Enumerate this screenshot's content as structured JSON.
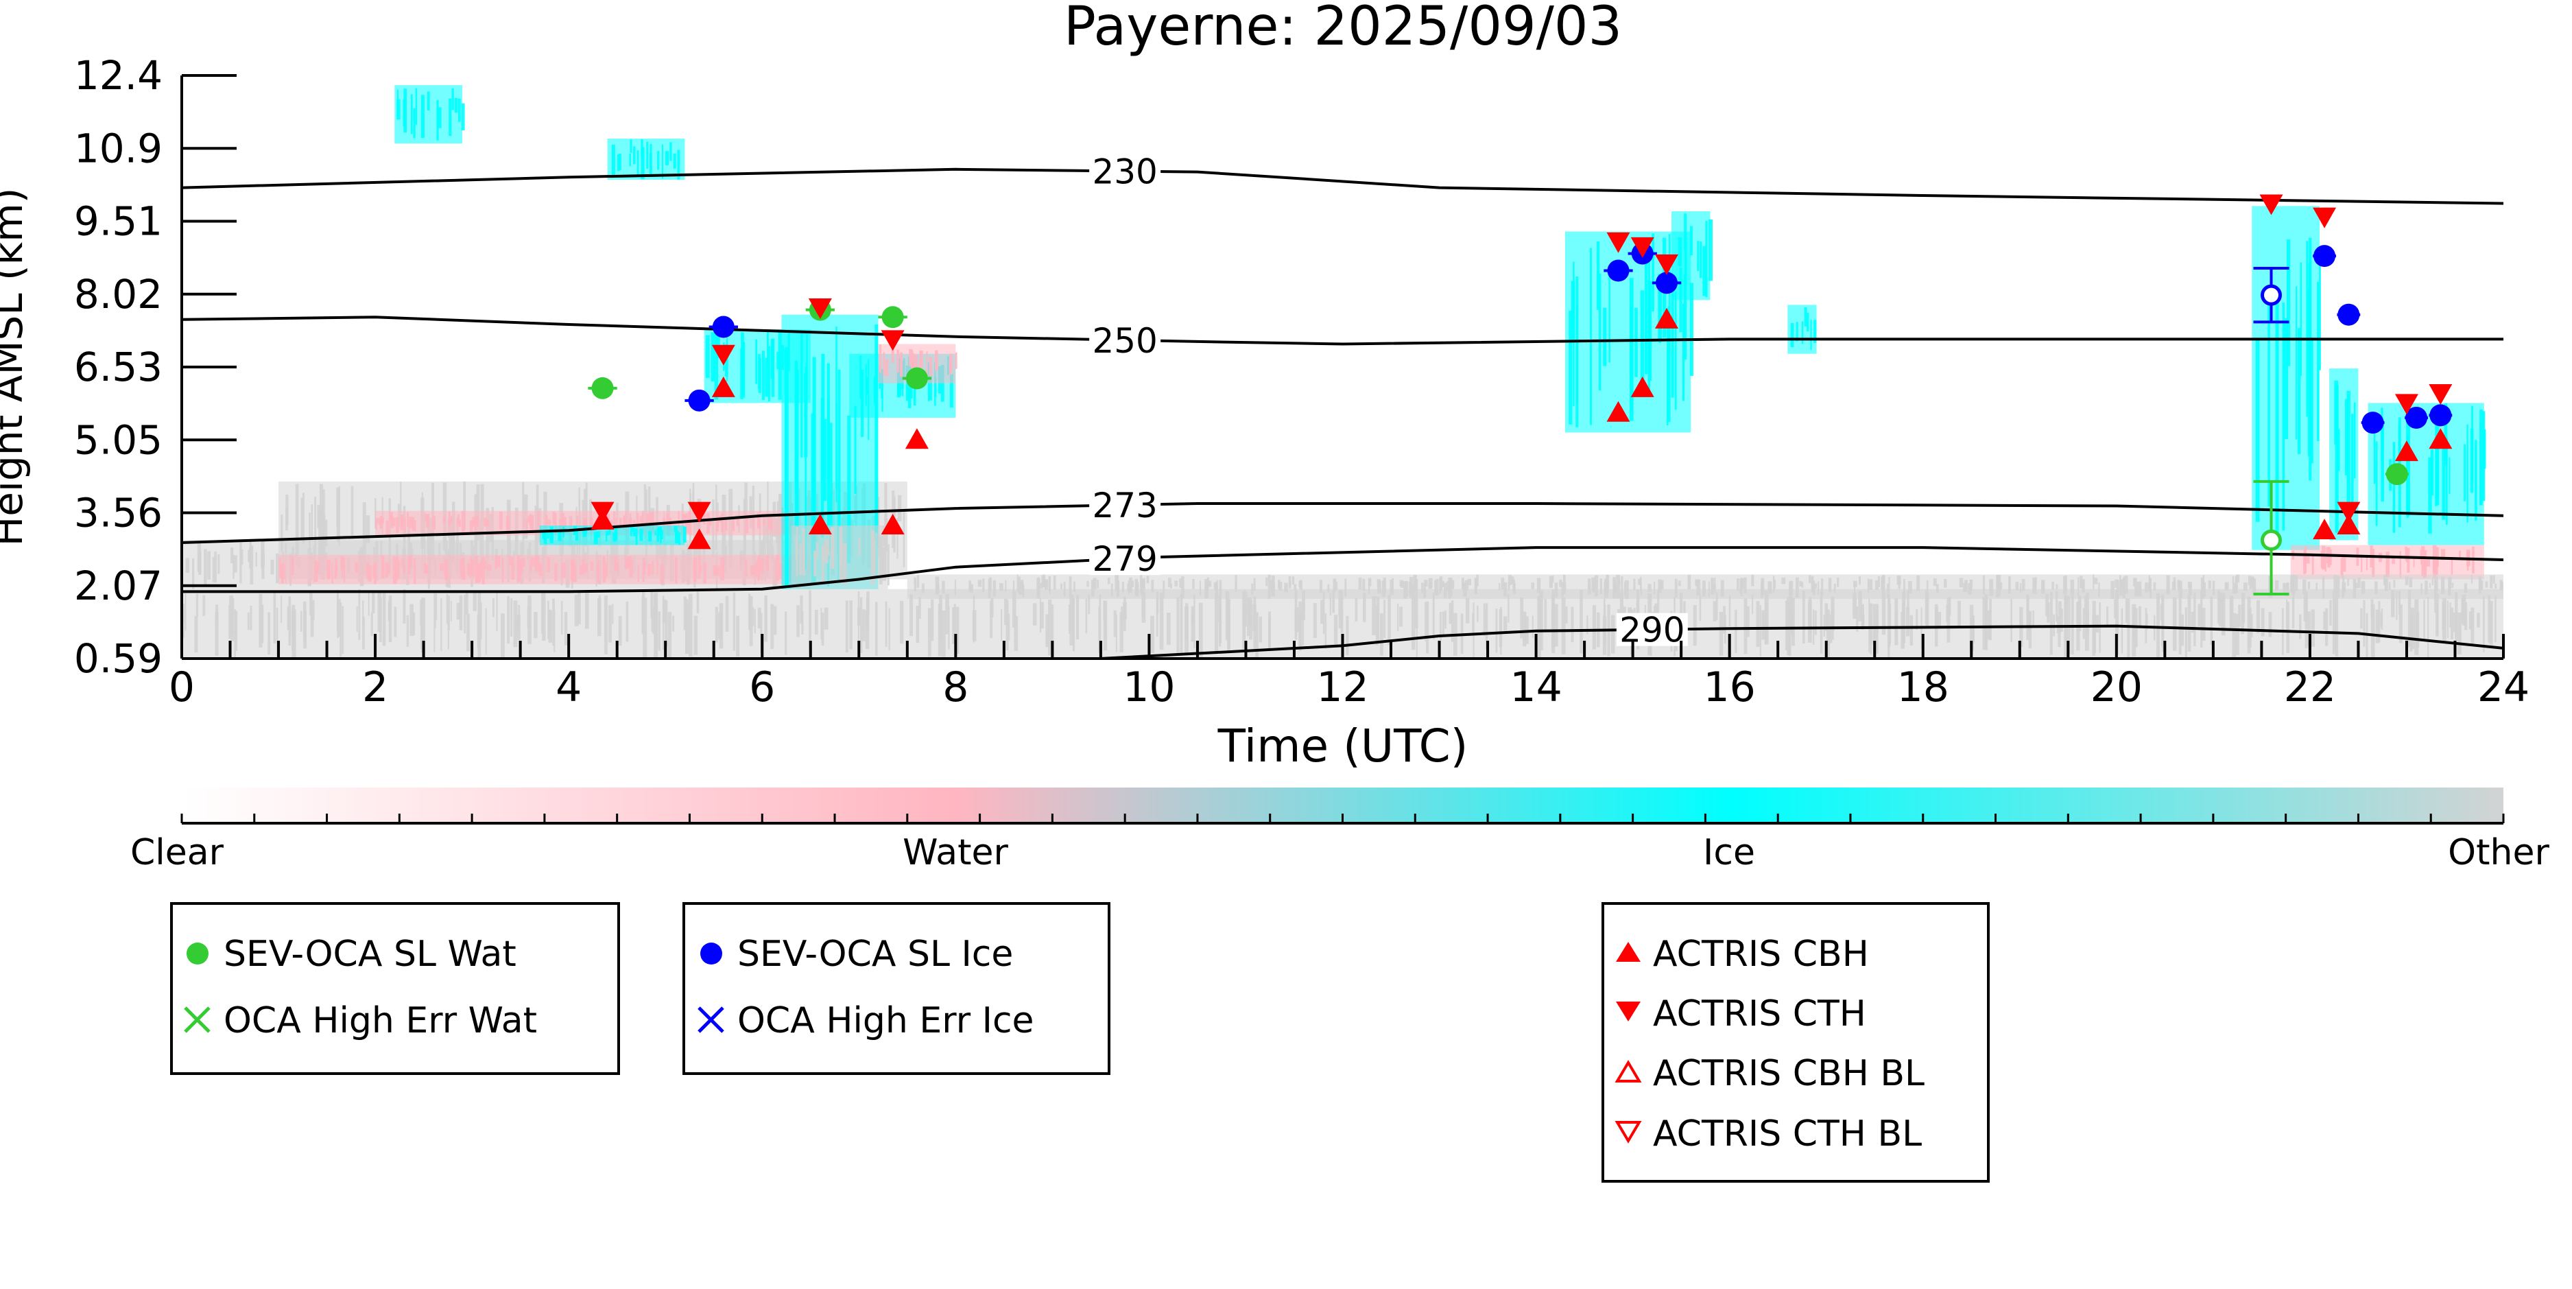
{
  "chart_data": {
    "type": "scatter",
    "title": "Payerne: 2025/09/03",
    "xlabel": "Time (UTC)",
    "ylabel": "Height AMSL (km)",
    "xlim": [
      0,
      24
    ],
    "ylim": [
      0.59,
      12.4
    ],
    "x_ticks": [
      0,
      2,
      4,
      6,
      8,
      10,
      12,
      14,
      16,
      18,
      20,
      22,
      24
    ],
    "y_ticks": [
      "0.59",
      "2.07",
      "3.56",
      "5.05",
      "6.53",
      "8.02",
      "9.51",
      "10.9",
      "12.4"
    ],
    "y_tick_values": [
      0.59,
      2.07,
      3.56,
      5.05,
      6.53,
      8.02,
      9.51,
      10.9,
      12.4
    ],
    "colors": {
      "water": "#ffb6c1",
      "ice": "#00ffff",
      "other": "#d3d3d3",
      "sev_wat": "#33cc33",
      "sev_ice": "#0000ff",
      "actris": "#ff0000",
      "contour": "#000000"
    },
    "colorbar": {
      "labels": [
        "Clear",
        "Water",
        "Ice",
        "Other"
      ],
      "stops": [
        "#ffffff",
        "#ffb6c1",
        "#00ffff",
        "#d3d3d3"
      ]
    },
    "isotherms": [
      {
        "label": "230",
        "label_x": 9.75,
        "points": [
          [
            0,
            10.15
          ],
          [
            4,
            10.35
          ],
          [
            8,
            10.5
          ],
          [
            10.5,
            10.45
          ],
          [
            13,
            10.15
          ],
          [
            18,
            10.0
          ],
          [
            24,
            9.85
          ]
        ]
      },
      {
        "label": "250",
        "label_x": 9.75,
        "points": [
          [
            0,
            7.5
          ],
          [
            2,
            7.55
          ],
          [
            4,
            7.4
          ],
          [
            8,
            7.15
          ],
          [
            10.5,
            7.05
          ],
          [
            12,
            7.0
          ],
          [
            16,
            7.1
          ],
          [
            20,
            7.1
          ],
          [
            24,
            7.1
          ]
        ]
      },
      {
        "label": "273",
        "label_x": 9.75,
        "points": [
          [
            0,
            2.95
          ],
          [
            4,
            3.2
          ],
          [
            6,
            3.5
          ],
          [
            8,
            3.65
          ],
          [
            10.5,
            3.75
          ],
          [
            14,
            3.75
          ],
          [
            20,
            3.7
          ],
          [
            24,
            3.5
          ]
        ]
      },
      {
        "label": "279",
        "label_x": 9.75,
        "points": [
          [
            0,
            1.95
          ],
          [
            4,
            1.95
          ],
          [
            6,
            2.0
          ],
          [
            7,
            2.2
          ],
          [
            8,
            2.45
          ],
          [
            10,
            2.65
          ],
          [
            14,
            2.85
          ],
          [
            18,
            2.85
          ],
          [
            22,
            2.7
          ],
          [
            24,
            2.6
          ]
        ]
      },
      {
        "label": "290",
        "label_x": 15.2,
        "points": [
          [
            9.5,
            0.59
          ],
          [
            12,
            0.85
          ],
          [
            13,
            1.05
          ],
          [
            14,
            1.15
          ],
          [
            16,
            1.2
          ],
          [
            20,
            1.25
          ],
          [
            22.5,
            1.1
          ],
          [
            24,
            0.8
          ]
        ]
      }
    ],
    "series": [
      {
        "name": "SEV-OCA SL Wat",
        "marker": "circle",
        "color": "#33cc33",
        "points": [
          [
            4.35,
            6.1,
            0.15
          ],
          [
            6.6,
            7.7,
            0.15
          ],
          [
            7.35,
            7.55,
            0.15
          ],
          [
            7.6,
            6.3,
            0.15
          ],
          [
            22.9,
            4.35,
            0.12
          ]
        ]
      },
      {
        "name": "SEV-OCA SL Wat (open)",
        "marker": "circle-open",
        "color": "#33cc33",
        "points": [
          [
            21.6,
            3.0,
            0.0
          ]
        ],
        "yerr": [
          [
            21.6,
            3.0,
            1.9,
            4.2
          ]
        ]
      },
      {
        "name": "OCA High Err Wat",
        "marker": "x",
        "color": "#33cc33",
        "points": []
      },
      {
        "name": "SEV-OCA SL Ice",
        "marker": "circle",
        "color": "#0000ff",
        "points": [
          [
            5.35,
            5.85,
            0.15
          ],
          [
            5.6,
            7.35,
            0.15
          ],
          [
            14.85,
            8.5,
            0.15
          ],
          [
            15.1,
            8.85,
            0.15
          ],
          [
            15.35,
            8.25,
            0.15
          ],
          [
            22.15,
            8.8,
            0.12
          ],
          [
            22.4,
            7.6,
            0.12
          ],
          [
            22.65,
            5.4,
            0.12
          ],
          [
            23.1,
            5.5,
            0.12
          ],
          [
            23.35,
            5.55,
            0.12
          ]
        ]
      },
      {
        "name": "SEV-OCA SL Ice (open)",
        "marker": "circle-open",
        "color": "#0000ff",
        "points": [
          [
            21.6,
            8.0,
            0.0
          ]
        ],
        "yerr": [
          [
            21.6,
            8.0,
            7.45,
            8.55
          ]
        ]
      },
      {
        "name": "OCA High Err Ice",
        "marker": "x",
        "color": "#0000ff",
        "points": []
      },
      {
        "name": "ACTRIS CBH",
        "marker": "triangle-up",
        "color": "#ff0000",
        "points": [
          [
            4.35,
            3.4
          ],
          [
            5.35,
            3.0
          ],
          [
            5.6,
            6.1
          ],
          [
            6.6,
            3.3
          ],
          [
            7.35,
            3.3
          ],
          [
            7.6,
            5.05
          ],
          [
            14.85,
            5.6
          ],
          [
            15.1,
            6.1
          ],
          [
            15.35,
            7.5
          ],
          [
            22.15,
            3.2
          ],
          [
            22.4,
            3.3
          ],
          [
            23.0,
            4.8
          ],
          [
            23.35,
            5.05
          ]
        ]
      },
      {
        "name": "ACTRIS CTH",
        "marker": "triangle-down",
        "color": "#ff0000",
        "points": [
          [
            4.35,
            3.6
          ],
          [
            5.35,
            3.6
          ],
          [
            5.6,
            6.8
          ],
          [
            6.6,
            7.75
          ],
          [
            7.35,
            7.1
          ],
          [
            14.85,
            9.1
          ],
          [
            15.1,
            9.0
          ],
          [
            15.35,
            8.65
          ],
          [
            21.6,
            9.85
          ],
          [
            22.15,
            9.6
          ],
          [
            22.4,
            3.6
          ],
          [
            23.0,
            5.8
          ],
          [
            23.35,
            6.0
          ]
        ]
      },
      {
        "name": "ACTRIS CBH BL",
        "marker": "triangle-up-open",
        "color": "#ff0000",
        "points": []
      },
      {
        "name": "ACTRIS CTH BL",
        "marker": "triangle-down-open",
        "color": "#ff0000",
        "points": []
      }
    ],
    "cloud_regions": [
      {
        "type": "other",
        "x0": 0.0,
        "x1": 24.0,
        "y0": 0.59,
        "y1": 2.0
      },
      {
        "type": "other",
        "x0": 0.0,
        "x1": 6.5,
        "y0": 2.0,
        "y1": 3.0
      },
      {
        "type": "other",
        "x0": 1.0,
        "x1": 7.5,
        "y0": 2.2,
        "y1": 4.2
      },
      {
        "type": "water",
        "x0": 1.0,
        "x1": 6.5,
        "y0": 2.1,
        "y1": 2.7
      },
      {
        "type": "water",
        "x0": 2.0,
        "x1": 6.4,
        "y0": 3.1,
        "y1": 3.6
      },
      {
        "type": "ice",
        "x0": 3.7,
        "x1": 5.2,
        "y0": 2.9,
        "y1": 3.3
      },
      {
        "type": "ice",
        "x0": 6.2,
        "x1": 7.2,
        "y0": 2.0,
        "y1": 7.6
      },
      {
        "type": "ice",
        "x0": 5.4,
        "x1": 6.5,
        "y0": 5.8,
        "y1": 7.3
      },
      {
        "type": "ice",
        "x0": 6.9,
        "x1": 8.0,
        "y0": 5.5,
        "y1": 6.8
      },
      {
        "type": "water",
        "x0": 7.2,
        "x1": 8.0,
        "y0": 6.2,
        "y1": 7.0
      },
      {
        "type": "other",
        "x0": 6.3,
        "x1": 7.3,
        "y0": 2.0,
        "y1": 3.3
      },
      {
        "type": "ice",
        "x0": 2.2,
        "x1": 2.9,
        "y0": 11.0,
        "y1": 12.2
      },
      {
        "type": "ice",
        "x0": 4.4,
        "x1": 5.2,
        "y0": 10.3,
        "y1": 11.1
      },
      {
        "type": "ice",
        "x0": 14.3,
        "x1": 15.6,
        "y0": 5.2,
        "y1": 9.3
      },
      {
        "type": "ice",
        "x0": 15.4,
        "x1": 15.8,
        "y0": 7.9,
        "y1": 9.7
      },
      {
        "type": "ice",
        "x0": 16.6,
        "x1": 16.9,
        "y0": 6.8,
        "y1": 7.8
      },
      {
        "type": "ice",
        "x0": 21.4,
        "x1": 22.1,
        "y0": 2.8,
        "y1": 9.8
      },
      {
        "type": "ice",
        "x0": 22.2,
        "x1": 22.5,
        "y0": 3.0,
        "y1": 6.5
      },
      {
        "type": "ice",
        "x0": 22.6,
        "x1": 23.8,
        "y0": 2.9,
        "y1": 5.8
      },
      {
        "type": "water",
        "x0": 21.8,
        "x1": 23.8,
        "y0": 2.2,
        "y1": 2.9
      },
      {
        "type": "other",
        "x0": 7.5,
        "x1": 24.0,
        "y0": 1.8,
        "y1": 2.3
      }
    ],
    "legends": [
      {
        "position": "bottom-left",
        "entries": [
          "SEV-OCA SL Wat",
          "OCA High Err Wat"
        ]
      },
      {
        "position": "bottom-center-left",
        "entries": [
          "SEV-OCA SL Ice",
          "OCA High Err Ice"
        ]
      },
      {
        "position": "bottom-center-right",
        "entries": [
          "ACTRIS CBH",
          "ACTRIS CTH",
          "ACTRIS CBH BL",
          "ACTRIS CTH BL"
        ]
      }
    ]
  }
}
